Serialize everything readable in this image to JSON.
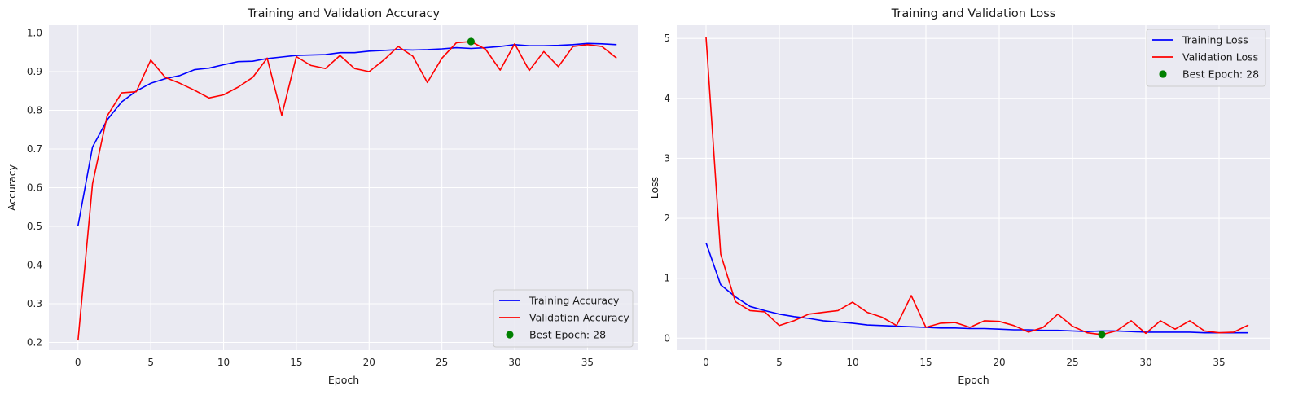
{
  "chart_data": [
    {
      "type": "line",
      "title": "Training and Validation Accuracy",
      "xlabel": "Epoch",
      "ylabel": "Accuracy",
      "xlim": [
        -2,
        38.5
      ],
      "ylim": [
        0.18,
        1.02
      ],
      "xticks": [
        0,
        5,
        10,
        15,
        20,
        25,
        30,
        35
      ],
      "yticks": [
        0.2,
        0.3,
        0.4,
        0.5,
        0.6,
        0.7,
        0.8,
        0.9,
        1.0
      ],
      "ytick_labels": [
        "0.2",
        "0.3",
        "0.4",
        "0.5",
        "0.6",
        "0.7",
        "0.8",
        "0.9",
        "1.0"
      ],
      "grid": true,
      "legend_position": "lower-right",
      "series": [
        {
          "name": "Training Accuracy",
          "color": "#0000ff",
          "x": [
            0,
            1,
            2,
            3,
            4,
            5,
            6,
            7,
            8,
            9,
            10,
            11,
            12,
            13,
            14,
            15,
            16,
            17,
            18,
            19,
            20,
            21,
            22,
            23,
            24,
            25,
            26,
            27,
            28,
            29,
            30,
            31,
            32,
            33,
            34,
            35,
            36,
            37
          ],
          "y": [
            0.502,
            0.705,
            0.775,
            0.822,
            0.85,
            0.87,
            0.882,
            0.89,
            0.905,
            0.909,
            0.918,
            0.926,
            0.927,
            0.934,
            0.938,
            0.942,
            0.943,
            0.944,
            0.949,
            0.949,
            0.953,
            0.955,
            0.957,
            0.956,
            0.957,
            0.959,
            0.962,
            0.96,
            0.962,
            0.965,
            0.97,
            0.967,
            0.967,
            0.968,
            0.97,
            0.973,
            0.972,
            0.97
          ]
        },
        {
          "name": "Validation Accuracy",
          "color": "#ff0000",
          "x": [
            0,
            1,
            2,
            3,
            4,
            5,
            6,
            7,
            8,
            9,
            10,
            11,
            12,
            13,
            14,
            15,
            16,
            17,
            18,
            19,
            20,
            21,
            22,
            23,
            24,
            25,
            26,
            27,
            28,
            29,
            30,
            31,
            32,
            33,
            34,
            35,
            36,
            37
          ],
          "y": [
            0.205,
            0.61,
            0.785,
            0.845,
            0.848,
            0.93,
            0.885,
            0.87,
            0.852,
            0.832,
            0.84,
            0.86,
            0.885,
            0.935,
            0.787,
            0.939,
            0.916,
            0.908,
            0.942,
            0.908,
            0.9,
            0.93,
            0.965,
            0.94,
            0.872,
            0.935,
            0.975,
            0.978,
            0.958,
            0.904,
            0.972,
            0.903,
            0.952,
            0.913,
            0.965,
            0.97,
            0.965,
            0.935
          ]
        }
      ],
      "scatter": [
        {
          "name": "Best Epoch: 28",
          "color": "#008000",
          "x": 27,
          "y": 0.978
        }
      ]
    },
    {
      "type": "line",
      "title": "Training and Validation Loss",
      "xlabel": "Epoch",
      "ylabel": "Loss",
      "xlim": [
        -2,
        38.5
      ],
      "ylim": [
        -0.2,
        5.22
      ],
      "xticks": [
        0,
        5,
        10,
        15,
        20,
        25,
        30,
        35
      ],
      "yticks": [
        0,
        1,
        2,
        3,
        4,
        5
      ],
      "ytick_labels": [
        "0",
        "1",
        "2",
        "3",
        "4",
        "5"
      ],
      "grid": true,
      "legend_position": "upper-right",
      "series": [
        {
          "name": "Training Loss",
          "color": "#0000ff",
          "x": [
            0,
            1,
            2,
            3,
            4,
            5,
            6,
            7,
            8,
            9,
            10,
            11,
            12,
            13,
            14,
            15,
            16,
            17,
            18,
            19,
            20,
            21,
            22,
            23,
            24,
            25,
            26,
            27,
            28,
            29,
            30,
            31,
            32,
            33,
            34,
            35,
            36,
            37
          ],
          "y": [
            1.59,
            0.89,
            0.69,
            0.53,
            0.46,
            0.4,
            0.36,
            0.33,
            0.29,
            0.27,
            0.25,
            0.22,
            0.21,
            0.2,
            0.19,
            0.18,
            0.17,
            0.17,
            0.16,
            0.16,
            0.15,
            0.14,
            0.14,
            0.13,
            0.13,
            0.12,
            0.11,
            0.12,
            0.12,
            0.11,
            0.1,
            0.1,
            0.1,
            0.1,
            0.09,
            0.09,
            0.09,
            0.09
          ]
        },
        {
          "name": "Validation Loss",
          "color": "#ff0000",
          "x": [
            0,
            1,
            2,
            3,
            4,
            5,
            6,
            7,
            8,
            9,
            10,
            11,
            12,
            13,
            14,
            15,
            16,
            17,
            18,
            19,
            20,
            21,
            22,
            23,
            24,
            25,
            26,
            27,
            28,
            29,
            30,
            31,
            32,
            33,
            34,
            35,
            36,
            37
          ],
          "y": [
            5.02,
            1.4,
            0.61,
            0.46,
            0.44,
            0.21,
            0.29,
            0.4,
            0.43,
            0.46,
            0.6,
            0.43,
            0.35,
            0.21,
            0.71,
            0.18,
            0.25,
            0.26,
            0.18,
            0.29,
            0.28,
            0.21,
            0.1,
            0.18,
            0.4,
            0.2,
            0.09,
            0.06,
            0.12,
            0.29,
            0.08,
            0.29,
            0.15,
            0.29,
            0.12,
            0.09,
            0.1,
            0.22
          ]
        }
      ],
      "scatter": [
        {
          "name": "Best Epoch: 28",
          "color": "#008000",
          "x": 27,
          "y": 0.06
        }
      ]
    }
  ]
}
